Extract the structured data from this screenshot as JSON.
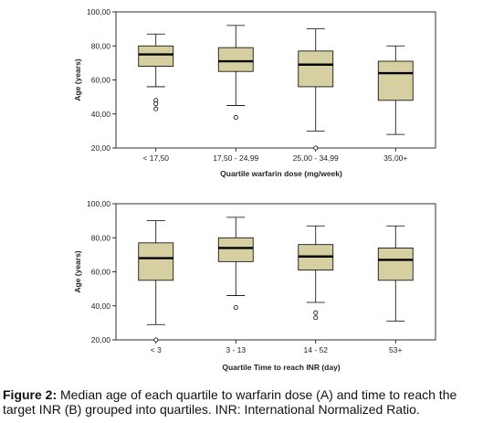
{
  "chart_data": [
    {
      "type": "boxplot",
      "panel": "A",
      "xlabel": "Quartile warfarin dose (mg/week)",
      "ylabel": "Age (years)",
      "ylim": [
        20,
        100
      ],
      "yticks": [
        "20,00",
        "40,00",
        "60,00",
        "80,00",
        "100,00"
      ],
      "yticks_values": [
        20,
        40,
        60,
        80,
        100
      ],
      "grid": false,
      "box_color": "#d6cfa1",
      "categories": [
        "< 17,50",
        "17,50 - 24,99",
        "25,00 - 34,99",
        "35,00+"
      ],
      "boxes": [
        {
          "whisker_low": 56,
          "q1": 68,
          "median": 75,
          "q3": 80,
          "whisker_high": 87,
          "outliers": [
            48,
            46,
            43
          ]
        },
        {
          "whisker_low": 45,
          "q1": 65,
          "median": 71,
          "q3": 79,
          "whisker_high": 92,
          "outliers": [
            38
          ]
        },
        {
          "whisker_low": 30,
          "q1": 56,
          "median": 69,
          "q3": 77,
          "whisker_high": 90,
          "outliers": [
            20
          ]
        },
        {
          "whisker_low": 28,
          "q1": 48,
          "median": 64,
          "q3": 71,
          "whisker_high": 80,
          "outliers": []
        }
      ]
    },
    {
      "type": "boxplot",
      "panel": "B",
      "xlabel": "Quartile Time to reach INR (day)",
      "ylabel": "Age (years)",
      "ylim": [
        20,
        100
      ],
      "yticks": [
        "20,00",
        "40,00",
        "60,00",
        "80,00",
        "100,00"
      ],
      "yticks_values": [
        20,
        40,
        60,
        80,
        100
      ],
      "grid": false,
      "box_color": "#d6cfa1",
      "categories": [
        "< 3",
        "3 - 13",
        "14 - 52",
        "53+"
      ],
      "boxes": [
        {
          "whisker_low": 29,
          "q1": 55,
          "median": 68,
          "q3": 77,
          "whisker_high": 90,
          "outliers": [
            20
          ]
        },
        {
          "whisker_low": 46,
          "q1": 66,
          "median": 74,
          "q3": 80,
          "whisker_high": 92,
          "outliers": [
            39
          ]
        },
        {
          "whisker_low": 42,
          "q1": 61,
          "median": 69,
          "q3": 76,
          "whisker_high": 87,
          "outliers": [
            36,
            33
          ]
        },
        {
          "whisker_low": 31,
          "q1": 55,
          "median": 67,
          "q3": 74,
          "whisker_high": 87,
          "outliers": []
        }
      ]
    }
  ],
  "caption": {
    "label": "Figure 2:",
    "text": " Median age of each quartile to warfarin dose (A) and time to reach the target INR (B) grouped into quartiles. INR: International Normalized Ratio."
  }
}
